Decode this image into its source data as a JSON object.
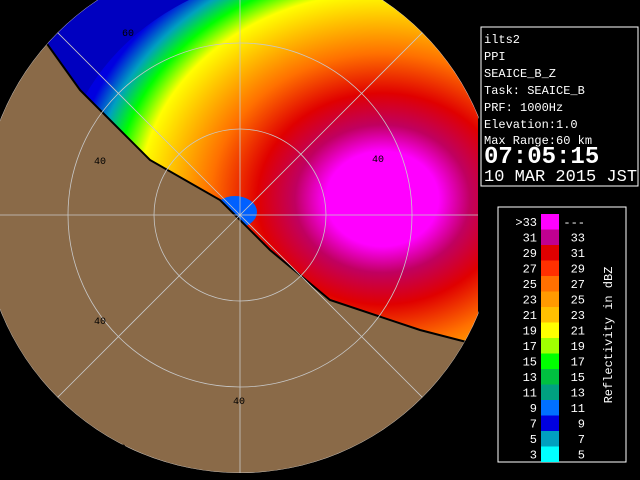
{
  "map": {
    "range_labels": [
      "60",
      "40",
      "40",
      "40",
      "40",
      "60"
    ]
  },
  "info": {
    "site": "ilts2",
    "mode": "PPI",
    "product": "SEAICE_B_Z",
    "task": "Task: SEAICE_B",
    "prf": "PRF: 1000Hz",
    "elevation": "Elevation:1.0",
    "max_range": "Max Range:60 km",
    "time": "07:05:15",
    "date": "10 MAR 2015 JST"
  },
  "legend": {
    "title": "Reflectivity in dBZ",
    "rows": [
      {
        "low": ">33",
        "high": "---",
        "color": "#ff00ff"
      },
      {
        "low": "31",
        "high": "33",
        "color": "#c00090"
      },
      {
        "low": "29",
        "high": "31",
        "color": "#e00000"
      },
      {
        "low": "27",
        "high": "29",
        "color": "#ff3000"
      },
      {
        "low": "25",
        "high": "27",
        "color": "#ff7000"
      },
      {
        "low": "23",
        "high": "25",
        "color": "#ff9a00"
      },
      {
        "low": "21",
        "high": "23",
        "color": "#ffc000"
      },
      {
        "low": "19",
        "high": "21",
        "color": "#ffff00"
      },
      {
        "low": "17",
        "high": "19",
        "color": "#a0ff00"
      },
      {
        "low": "15",
        "high": "17",
        "color": "#00ff00"
      },
      {
        "low": "13",
        "high": "15",
        "color": "#00c040"
      },
      {
        "low": "11",
        "high": "13",
        "color": "#00a080"
      },
      {
        "low": "9",
        "high": "11",
        "color": "#0070ff"
      },
      {
        "low": "7",
        "high": "9",
        "color": "#0000e0"
      },
      {
        "low": "5",
        "high": "7",
        "color": "#00a0c0"
      },
      {
        "low": "3",
        "high": "5",
        "color": "#00ffff"
      }
    ]
  }
}
